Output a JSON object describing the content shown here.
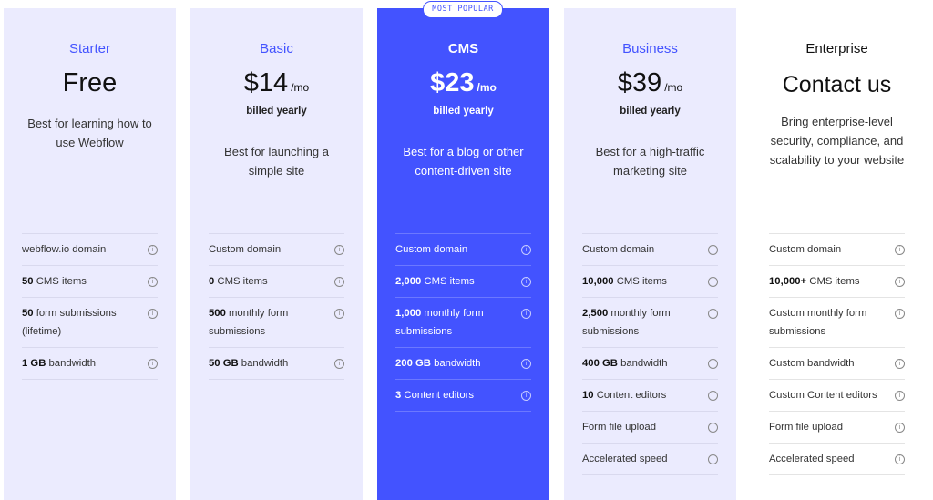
{
  "colors": {
    "accent": "#4353ff",
    "card_bg": "#ebebfe"
  },
  "plans": [
    {
      "name": "Starter",
      "price": "Free",
      "per": "",
      "billed": "",
      "description": "Best for learning how to use Webflow",
      "features": [
        {
          "bold": "",
          "text": "webflow.io domain"
        },
        {
          "bold": "50",
          "text": " CMS items"
        },
        {
          "bold": "50",
          "text": " form submissions (lifetime)"
        },
        {
          "bold": "1 GB",
          "text": " bandwidth"
        }
      ]
    },
    {
      "name": "Basic",
      "price": "$14",
      "per": "/mo",
      "billed": "billed yearly",
      "description": "Best for launching a simple site",
      "features": [
        {
          "bold": "",
          "text": "Custom domain"
        },
        {
          "bold": "0",
          "text": " CMS items"
        },
        {
          "bold": "500",
          "text": " monthly form submissions"
        },
        {
          "bold": "50 GB",
          "text": " bandwidth"
        }
      ]
    },
    {
      "name": "CMS",
      "badge": "MOST POPULAR",
      "price": "$23",
      "per": "/mo",
      "billed": "billed yearly",
      "description": "Best for a blog or other content-driven site",
      "features": [
        {
          "bold": "",
          "text": "Custom domain"
        },
        {
          "bold": "2,000",
          "text": " CMS items"
        },
        {
          "bold": "1,000",
          "text": " monthly form submissions"
        },
        {
          "bold": "200 GB",
          "text": " bandwidth"
        },
        {
          "bold": "3",
          "text": " Content editors"
        }
      ]
    },
    {
      "name": "Business",
      "price": "$39",
      "per": "/mo",
      "billed": "billed yearly",
      "description": "Best for a high-traffic marketing site",
      "features": [
        {
          "bold": "",
          "text": "Custom domain"
        },
        {
          "bold": "10,000",
          "text": " CMS items"
        },
        {
          "bold": "2,500",
          "text": " monthly form submissions"
        },
        {
          "bold": "400 GB",
          "text": " bandwidth"
        },
        {
          "bold": "10",
          "text": " Content editors"
        },
        {
          "bold": "",
          "text": "Form file upload"
        },
        {
          "bold": "",
          "text": "Accelerated speed"
        }
      ]
    },
    {
      "name": "Enterprise",
      "price": "Contact us",
      "per": "",
      "billed": "",
      "description": "Bring enterprise-level security, compliance, and scalability to your website",
      "features": [
        {
          "bold": "",
          "text": "Custom domain"
        },
        {
          "bold": "10,000+",
          "text": " CMS items"
        },
        {
          "bold": "",
          "text": "Custom monthly form submissions"
        },
        {
          "bold": "",
          "text": "Custom bandwidth"
        },
        {
          "bold": "",
          "text": "Custom Content editors"
        },
        {
          "bold": "",
          "text": "Form file upload"
        },
        {
          "bold": "",
          "text": "Accelerated speed"
        }
      ]
    }
  ]
}
